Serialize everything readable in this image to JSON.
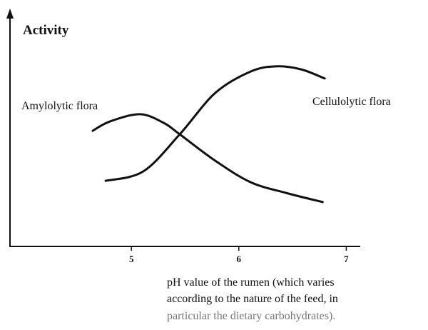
{
  "chart_data": {
    "type": "line",
    "ylabel": "Activity",
    "xlabel": [
      "pH value of the rumen (which varies",
      "according to the nature of the feed, in",
      "particular the dietary carbohydrates)."
    ],
    "xlim": [
      3.87,
      7.13
    ],
    "xticks": [
      5,
      6,
      7
    ],
    "ylim": [
      0,
      100
    ],
    "series": [
      {
        "name": "Amylolytic flora",
        "color": "#111111",
        "x": [
          4.64,
          4.8,
          5.08,
          5.3,
          5.45,
          5.78,
          6.11,
          6.44,
          6.78
        ],
        "values": [
          49.5,
          53.5,
          56.6,
          52.9,
          48,
          36.7,
          27.5,
          22.9,
          19
        ]
      },
      {
        "name": "Cellulolytic flora",
        "color": "#111111",
        "x": [
          4.76,
          5.11,
          5.45,
          5.78,
          6.11,
          6.35,
          6.58,
          6.8
        ],
        "values": [
          28.1,
          32.1,
          48,
          65.7,
          74.9,
          77.1,
          75.8,
          71.9
        ]
      }
    ]
  }
}
